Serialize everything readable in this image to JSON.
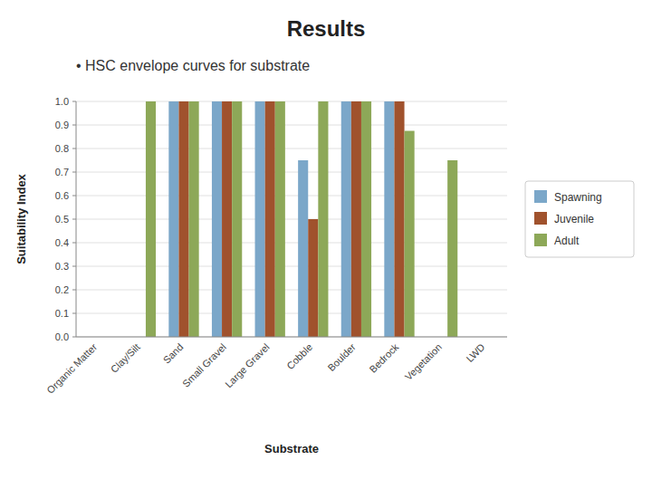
{
  "chart_data": {
    "type": "bar",
    "title": "Results",
    "subtitle": "• HSC envelope curves for substrate",
    "xlabel": "Substrate",
    "ylabel": "Suitability Index",
    "categories": [
      "Organic Matter",
      "Clay/Silt",
      "Sand",
      "Small Gravel",
      "Large Gravel",
      "Cobble",
      "Boulder",
      "Bedrock",
      "Vegetation",
      "LWD"
    ],
    "series": [
      {
        "name": "Spawning",
        "color": "#7BA7C9",
        "values": [
          0.0,
          0.0,
          1.0,
          1.0,
          1.0,
          0.75,
          1.0,
          1.0,
          0.0,
          0.0
        ]
      },
      {
        "name": "Juvenile",
        "color": "#A0522D",
        "values": [
          0.0,
          0.0,
          1.0,
          1.0,
          1.0,
          0.5,
          1.0,
          1.0,
          0.0,
          0.0
        ]
      },
      {
        "name": "Adult",
        "color": "#8DA858",
        "values": [
          0.0,
          1.0,
          1.0,
          1.0,
          1.0,
          1.0,
          1.0,
          0.875,
          0.75,
          0.0
        ]
      }
    ],
    "ylim": [
      0.0,
      1.0
    ],
    "yticks": [
      {
        "value": 0.0,
        "label": "0.0"
      },
      0.1,
      0.2,
      0.3,
      0.4,
      0.5,
      0.6,
      0.7,
      0.8,
      0.9,
      {
        "value": 1.0,
        "label": "1.0"
      }
    ],
    "grid": true,
    "legend": "right"
  }
}
